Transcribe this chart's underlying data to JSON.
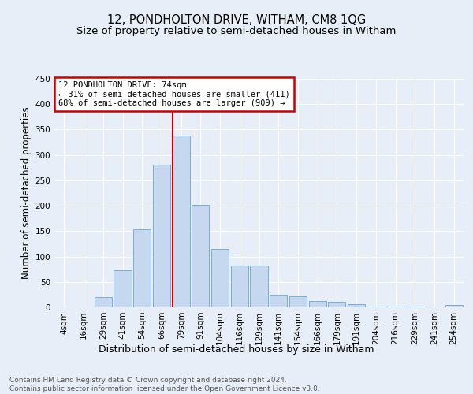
{
  "title": "12, PONDHOLTON DRIVE, WITHAM, CM8 1QG",
  "subtitle": "Size of property relative to semi-detached houses in Witham",
  "xlabel": "Distribution of semi-detached houses by size in Witham",
  "ylabel": "Number of semi-detached properties",
  "categories": [
    "4sqm",
    "16sqm",
    "29sqm",
    "41sqm",
    "54sqm",
    "66sqm",
    "79sqm",
    "91sqm",
    "104sqm",
    "116sqm",
    "129sqm",
    "141sqm",
    "154sqm",
    "166sqm",
    "179sqm",
    "191sqm",
    "204sqm",
    "216sqm",
    "229sqm",
    "241sqm",
    "254sqm"
  ],
  "values": [
    0,
    0,
    20,
    73,
    153,
    281,
    338,
    202,
    115,
    83,
    83,
    25,
    22,
    13,
    11,
    6,
    2,
    1,
    1,
    0,
    5
  ],
  "bar_color": "#c5d8f0",
  "bar_edge_color": "#7aadd4",
  "line_color": "#cc0000",
  "annotation_box_color": "#ffffff",
  "annotation_box_edge": "#cc0000",
  "property_line_label": "12 PONDHOLTON DRIVE: 74sqm",
  "annotation_smaller": "← 31% of semi-detached houses are smaller (411)",
  "annotation_larger": "68% of semi-detached houses are larger (909) →",
  "ylim": [
    0,
    450
  ],
  "yticks": [
    0,
    50,
    100,
    150,
    200,
    250,
    300,
    350,
    400,
    450
  ],
  "footer": "Contains HM Land Registry data © Crown copyright and database right 2024.\nContains public sector information licensed under the Open Government Licence v3.0.",
  "bg_color": "#e8eef8",
  "grid_color": "#ffffff",
  "title_fontsize": 10.5,
  "subtitle_fontsize": 9.5,
  "xlabel_fontsize": 9,
  "ylabel_fontsize": 8.5,
  "tick_fontsize": 7.5,
  "footer_fontsize": 6.5,
  "annot_fontsize": 7.5
}
